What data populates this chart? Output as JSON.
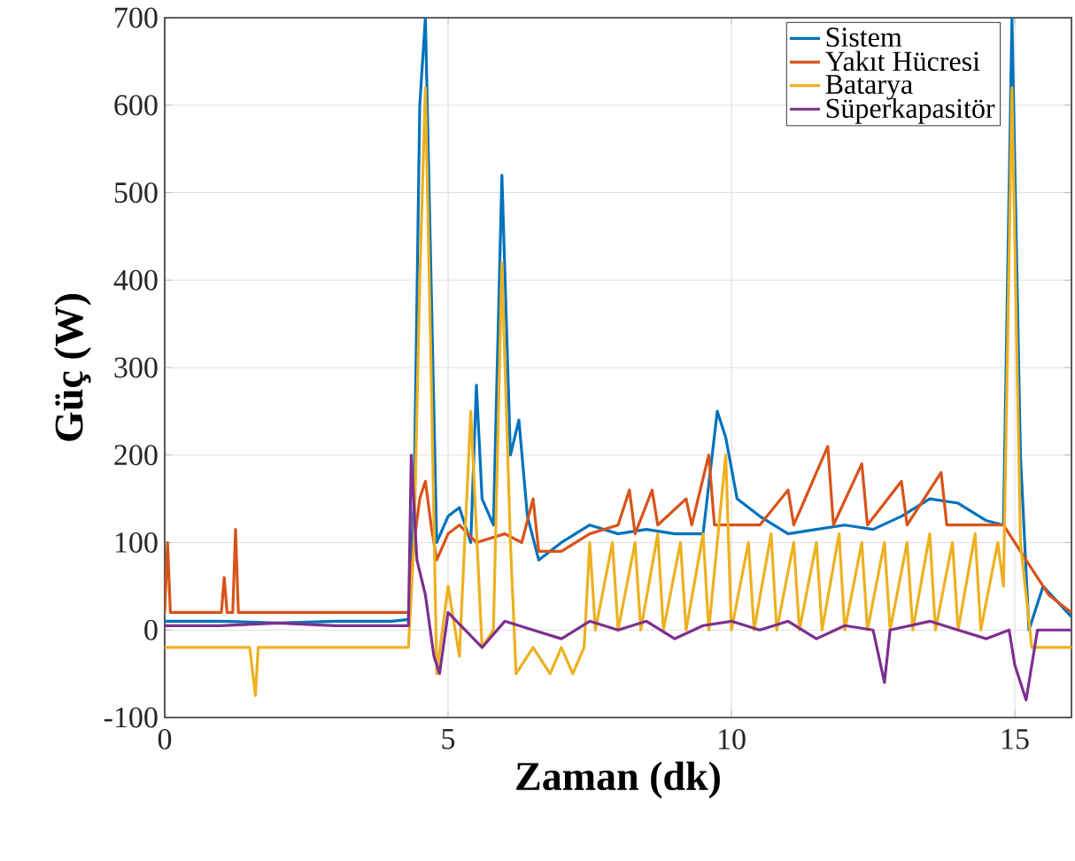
{
  "chart_data": {
    "type": "line",
    "xlabel": "Zaman (dk)",
    "ylabel": "Güç (W)",
    "xlim": [
      0,
      16
    ],
    "ylim": [
      -100,
      700
    ],
    "xticks": [
      0,
      5,
      10,
      15
    ],
    "yticks": [
      -100,
      0,
      100,
      200,
      300,
      400,
      500,
      600,
      700
    ],
    "grid": true,
    "legend": "top right",
    "marker": "none",
    "line_style": "solid",
    "series": [
      {
        "name": "Sistem",
        "color": "#0072bd",
        "x": [
          0,
          1,
          2,
          3,
          4,
          4.3,
          4.4,
          4.5,
          4.6,
          4.7,
          4.8,
          5.0,
          5.2,
          5.4,
          5.5,
          5.6,
          5.8,
          5.95,
          6.1,
          6.25,
          6.4,
          6.6,
          7.0,
          7.5,
          8.0,
          8.5,
          9.0,
          9.5,
          9.75,
          9.9,
          10.1,
          10.5,
          11,
          11.5,
          12,
          12.5,
          13,
          13.5,
          14,
          14.5,
          14.8,
          14.95,
          15.1,
          15.25,
          15.5,
          16
        ],
        "values": [
          10,
          10,
          8,
          10,
          10,
          12,
          150,
          600,
          700,
          400,
          100,
          130,
          140,
          100,
          280,
          150,
          120,
          520,
          200,
          240,
          130,
          80,
          100,
          120,
          110,
          115,
          110,
          110,
          250,
          220,
          150,
          130,
          110,
          115,
          120,
          115,
          130,
          150,
          145,
          125,
          120,
          700,
          200,
          0,
          50,
          15
        ]
      },
      {
        "name": "Yakıt Hücresi",
        "color": "#d95319",
        "x": [
          0,
          0.05,
          0.1,
          1.0,
          1.05,
          1.1,
          1.2,
          1.25,
          1.3,
          4.3,
          4.4,
          4.5,
          4.6,
          4.7,
          4.8,
          5.0,
          5.2,
          5.5,
          6.0,
          6.3,
          6.5,
          6.6,
          7.0,
          7.5,
          8.0,
          8.2,
          8.3,
          8.6,
          8.7,
          9.2,
          9.3,
          9.6,
          9.7,
          10.5,
          11.0,
          11.1,
          11.7,
          11.8,
          12.3,
          12.4,
          13.0,
          13.1,
          13.7,
          13.8,
          14.5,
          14.8,
          15.0,
          15.3,
          15.6,
          16
        ],
        "values": [
          20,
          100,
          20,
          20,
          60,
          20,
          20,
          115,
          20,
          20,
          100,
          150,
          170,
          120,
          80,
          110,
          120,
          100,
          110,
          100,
          150,
          90,
          90,
          110,
          120,
          160,
          110,
          160,
          120,
          150,
          120,
          200,
          120,
          120,
          160,
          120,
          210,
          120,
          190,
          120,
          170,
          120,
          180,
          120,
          120,
          120,
          100,
          70,
          40,
          20
        ]
      },
      {
        "name": "Batarya",
        "color": "#edb120",
        "x": [
          0,
          1.5,
          1.6,
          1.65,
          4.3,
          4.4,
          4.5,
          4.6,
          4.7,
          4.8,
          5.0,
          5.2,
          5.4,
          5.6,
          5.8,
          5.95,
          6.1,
          6.2,
          6.5,
          6.8,
          7.0,
          7.2,
          7.4,
          7.5,
          7.6,
          7.9,
          8.0,
          8.3,
          8.4,
          8.7,
          8.8,
          9.1,
          9.2,
          9.5,
          9.6,
          9.9,
          10.0,
          10.3,
          10.4,
          10.7,
          10.8,
          11.1,
          11.2,
          11.5,
          11.6,
          11.9,
          12.0,
          12.3,
          12.4,
          12.7,
          12.8,
          13.1,
          13.2,
          13.5,
          13.6,
          13.9,
          14.0,
          14.3,
          14.4,
          14.7,
          14.8,
          14.95,
          15.1,
          15.3,
          16
        ],
        "values": [
          -20,
          -20,
          -75,
          -20,
          -20,
          100,
          400,
          620,
          300,
          -50,
          50,
          -30,
          250,
          -20,
          0,
          420,
          100,
          -50,
          -20,
          -50,
          -20,
          -50,
          -20,
          100,
          0,
          100,
          0,
          100,
          0,
          110,
          0,
          100,
          0,
          110,
          0,
          200,
          0,
          100,
          0,
          110,
          0,
          100,
          0,
          100,
          0,
          110,
          0,
          100,
          0,
          100,
          0,
          100,
          0,
          110,
          0,
          100,
          0,
          110,
          0,
          100,
          50,
          620,
          100,
          -20,
          -20
        ]
      },
      {
        "name": "Süperkapasitör",
        "color": "#7e2f8e",
        "x": [
          0,
          1,
          2,
          3,
          4.3,
          4.35,
          4.45,
          4.6,
          4.75,
          4.85,
          5.0,
          5.3,
          5.6,
          6.0,
          6.5,
          7.0,
          7.5,
          8.0,
          8.5,
          9.0,
          9.5,
          10.0,
          10.5,
          11.0,
          11.5,
          12.0,
          12.5,
          12.7,
          12.8,
          13.5,
          14.0,
          14.5,
          14.9,
          15.0,
          15.2,
          15.4,
          16
        ],
        "values": [
          5,
          5,
          8,
          5,
          5,
          200,
          80,
          40,
          -30,
          -50,
          20,
          0,
          -20,
          10,
          0,
          -10,
          10,
          0,
          10,
          -10,
          5,
          10,
          0,
          10,
          -10,
          5,
          0,
          -60,
          0,
          10,
          0,
          -10,
          0,
          -40,
          -80,
          0,
          0
        ]
      }
    ]
  }
}
